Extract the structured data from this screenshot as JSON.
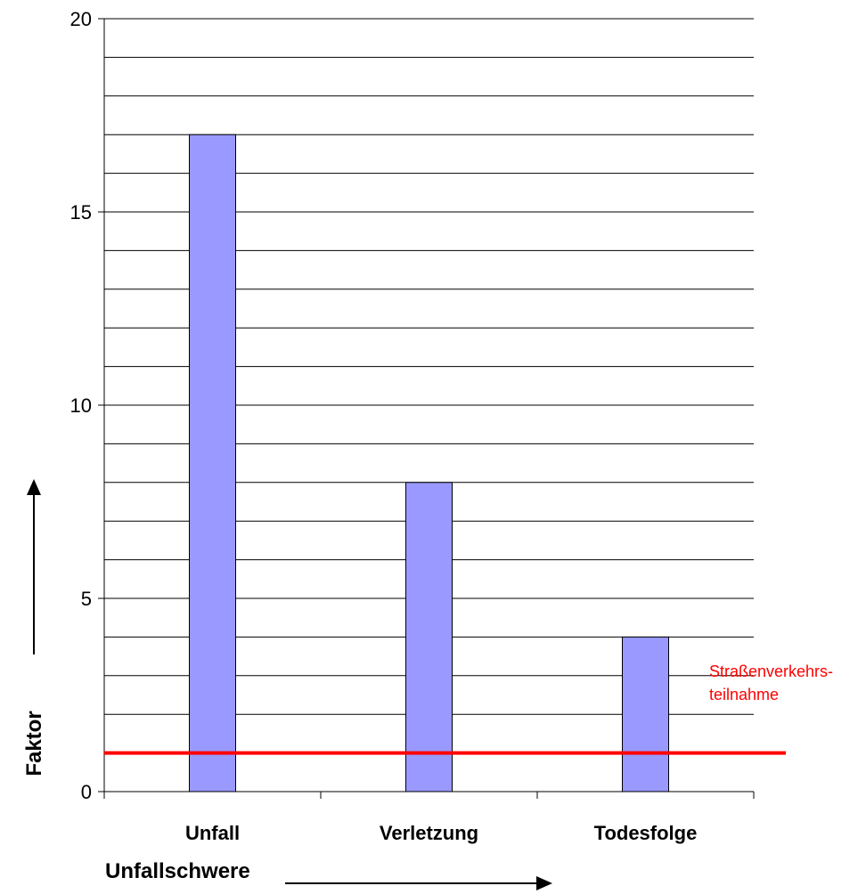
{
  "chart_data": {
    "type": "bar",
    "title": "",
    "xlabel": "Unfallschwere",
    "ylabel": "Faktor",
    "categories": [
      "Unfall",
      "Verletzung",
      "Todesfolge"
    ],
    "values": [
      17,
      8,
      4
    ],
    "ylim": [
      0,
      20
    ],
    "y_ticks": [
      "0",
      "5",
      "10",
      "15",
      "20"
    ],
    "grid": true,
    "bar_color": "#9999ff",
    "reference_line": {
      "value": 1,
      "color": "#ff0000",
      "label_line1": "Straßenverkehrs-",
      "label_line2": "teilnahme"
    }
  }
}
